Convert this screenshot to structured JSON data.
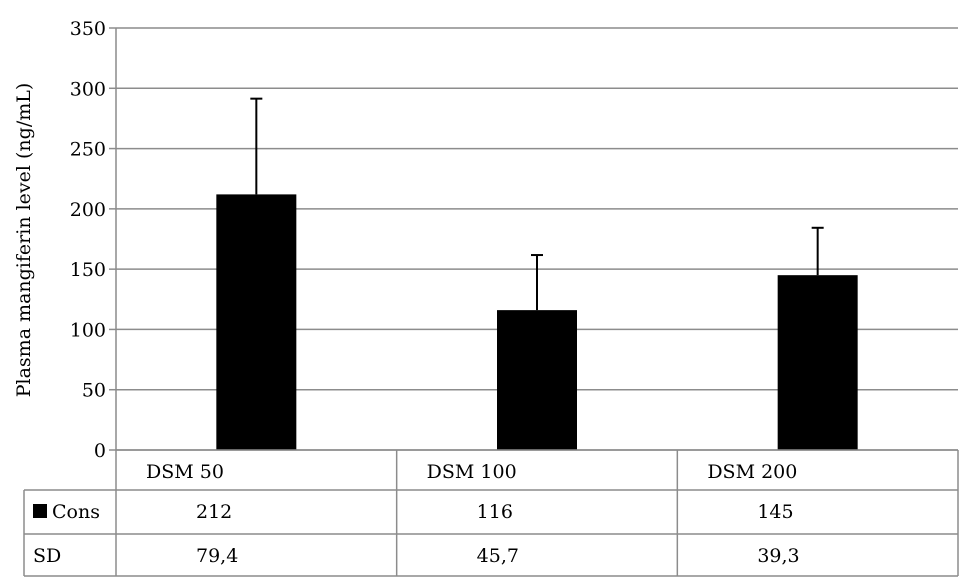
{
  "chart_data": {
    "type": "bar",
    "categories": [
      "DSM 50",
      "DSM 100",
      "DSM 200"
    ],
    "series": [
      {
        "name": "Cons",
        "values": [
          212,
          116,
          145
        ],
        "color": "#000000"
      }
    ],
    "error_bars": {
      "name": "SD",
      "values": [
        79.4,
        45.7,
        39.3
      ]
    },
    "ylabel": "Plasma mangiferin level (ng/mL)",
    "ylim": [
      0,
      350
    ],
    "yticks": [
      0,
      50,
      100,
      150,
      200,
      250,
      300,
      350
    ],
    "ytick_labels": [
      "0",
      "50",
      "100",
      "150",
      "200",
      "250",
      "300",
      "350"
    ],
    "grid": true,
    "legend": "data-table",
    "data_table": {
      "rows": [
        {
          "label": "Cons",
          "cells": [
            "212",
            "116",
            "145"
          ]
        },
        {
          "label": "SD",
          "cells": [
            "79,4",
            "45,7",
            "39,3"
          ]
        }
      ]
    }
  }
}
